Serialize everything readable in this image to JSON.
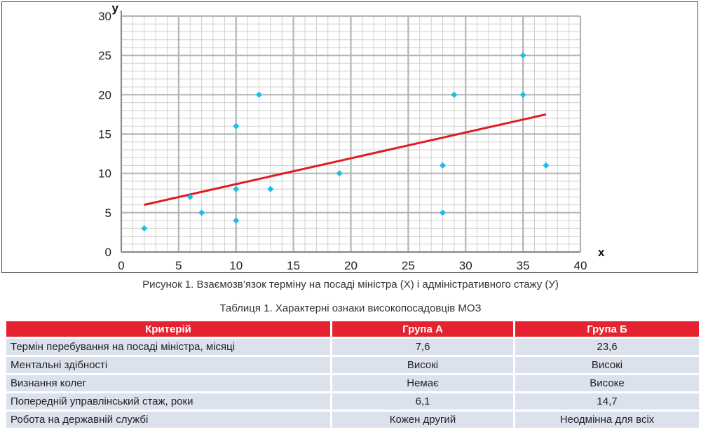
{
  "chart_data": {
    "type": "scatter",
    "title": "",
    "xlabel": "x",
    "ylabel": "y",
    "xlim": [
      0,
      40
    ],
    "ylim": [
      0,
      30
    ],
    "x_ticks": [
      0,
      5,
      10,
      15,
      20,
      25,
      30,
      35,
      40
    ],
    "y_ticks": [
      0,
      5,
      10,
      15,
      20,
      25,
      30
    ],
    "grid": "on",
    "points": [
      {
        "x": 2,
        "y": 3
      },
      {
        "x": 6,
        "y": 7
      },
      {
        "x": 7,
        "y": 5
      },
      {
        "x": 10,
        "y": 4
      },
      {
        "x": 10,
        "y": 8
      },
      {
        "x": 10,
        "y": 16
      },
      {
        "x": 12,
        "y": 20
      },
      {
        "x": 13,
        "y": 8
      },
      {
        "x": 19,
        "y": 10
      },
      {
        "x": 28,
        "y": 5
      },
      {
        "x": 28,
        "y": 11
      },
      {
        "x": 29,
        "y": 20
      },
      {
        "x": 35,
        "y": 20
      },
      {
        "x": 35,
        "y": 25
      },
      {
        "x": 37,
        "y": 11
      }
    ],
    "trend_line": {
      "x": [
        2,
        37
      ],
      "y": [
        6,
        17.5
      ]
    },
    "colors": {
      "points": "#19bde8",
      "trend": "#e21b22",
      "grid": "#b5b5b5"
    }
  },
  "figure_caption": "Рисунок 1.  Взаємозв’язок терміну на посаді міністра (X) і адміністративного стажу (У)",
  "table_caption": "Таблиця 1.  Характерні ознаки високопосадовців МОЗ",
  "table": {
    "headers": [
      "Критерій",
      "Група А",
      "Група Б"
    ],
    "rows": [
      [
        "Термін перебування на посаді міністра, місяці",
        "7,6",
        "23,6"
      ],
      [
        "Ментальні здібності",
        "Високі",
        "Високі"
      ],
      [
        "Визнання колег",
        "Немає",
        "Високе"
      ],
      [
        "Попередній управлінський стаж, роки",
        "6,1",
        "14,7"
      ],
      [
        "Робота на державній службі",
        "Кожен другий",
        "Неодмінна для всіх"
      ]
    ],
    "colors": {
      "header": "#e52330",
      "row": "#dbe2ed"
    }
  }
}
